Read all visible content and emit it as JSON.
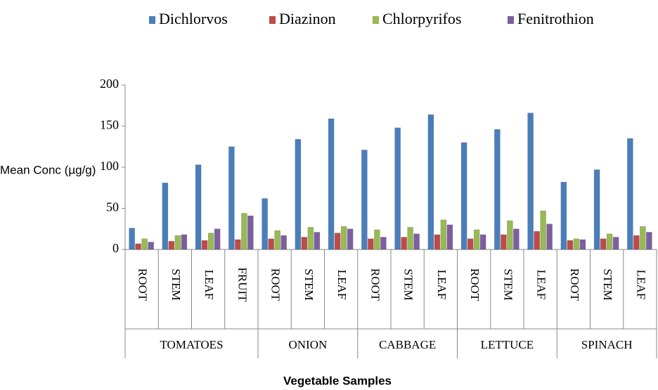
{
  "chart_data": {
    "type": "bar",
    "x_label": "Vegetable Samples",
    "y_label": "Mean Conc (µg/g)",
    "groups": [
      {
        "name": "TOMATOES",
        "categories": [
          "ROOT",
          "STEM",
          "LEAF",
          "FRUIT"
        ]
      },
      {
        "name": "ONION",
        "categories": [
          "ROOT",
          "STEM",
          "LEAF"
        ]
      },
      {
        "name": "CABBAGE",
        "categories": [
          "ROOT",
          "STEM",
          "LEAF"
        ]
      },
      {
        "name": "LETTUCE",
        "categories": [
          "ROOT",
          "STEM",
          "LEAF"
        ]
      },
      {
        "name": "SPINACH",
        "categories": [
          "ROOT",
          "STEM",
          "LEAF"
        ]
      }
    ],
    "series": [
      {
        "name": "Dichlorvos",
        "color": "#4a7ebb",
        "values": [
          26,
          81,
          103,
          125,
          62,
          134,
          159,
          121,
          148,
          164,
          130,
          146,
          166,
          82,
          97,
          135
        ]
      },
      {
        "name": "Diazinon",
        "color": "#be4b48",
        "values": [
          7,
          10,
          11,
          12,
          13,
          15,
          20,
          13,
          15,
          18,
          13,
          18,
          22,
          11,
          13,
          17
        ]
      },
      {
        "name": "Chlorpyrifos",
        "color": "#98b954",
        "values": [
          13,
          17,
          20,
          44,
          23,
          27,
          28,
          24,
          27,
          36,
          24,
          35,
          47,
          13,
          19,
          28
        ]
      },
      {
        "name": "Fenitrothion",
        "color": "#7d5fa0",
        "values": [
          9,
          18,
          25,
          41,
          17,
          21,
          25,
          15,
          19,
          30,
          18,
          25,
          31,
          12,
          15,
          21
        ]
      }
    ],
    "ylim": [
      0,
      200
    ],
    "yticks": [
      0,
      50,
      100,
      150,
      200
    ],
    "grid": false,
    "legend": "top"
  }
}
